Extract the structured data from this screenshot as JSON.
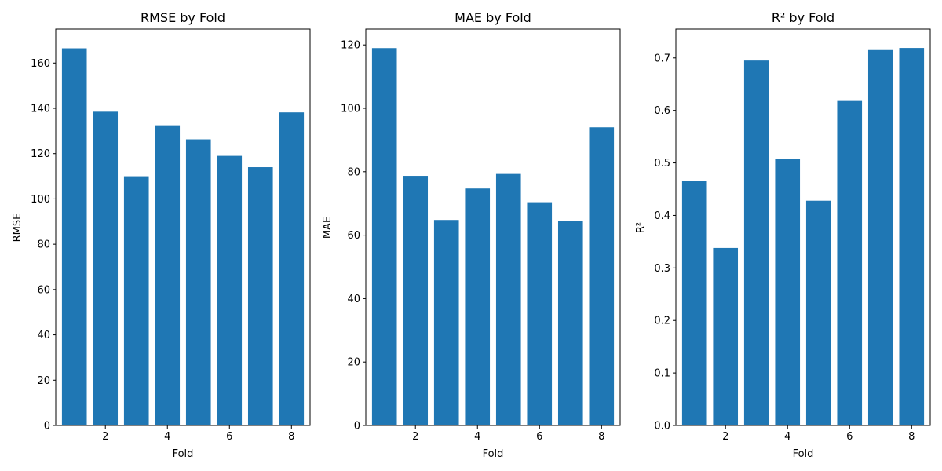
{
  "chart_data": [
    {
      "type": "bar",
      "title": "RMSE by Fold",
      "xlabel": "Fold",
      "ylabel": "RMSE",
      "x": [
        1,
        2,
        3,
        4,
        5,
        6,
        7,
        8
      ],
      "values": [
        166.5,
        138.5,
        110.0,
        132.5,
        126.3,
        119.0,
        114.0,
        138.2
      ],
      "xlim": [
        0.4,
        8.6
      ],
      "ylim": [
        0,
        175
      ],
      "xticks": [
        2,
        4,
        6,
        8
      ],
      "yticks": [
        0,
        20,
        40,
        60,
        80,
        100,
        120,
        140,
        160
      ],
      "ytick_labels": [
        "0",
        "20",
        "40",
        "60",
        "80",
        "100",
        "120",
        "140",
        "160"
      ],
      "color": "#1f77b4",
      "grid": false
    },
    {
      "type": "bar",
      "title": "MAE by Fold",
      "xlabel": "Fold",
      "ylabel": "MAE",
      "x": [
        1,
        2,
        3,
        4,
        5,
        6,
        7,
        8
      ],
      "values": [
        119.0,
        78.7,
        64.8,
        74.7,
        79.3,
        70.4,
        64.5,
        94.0
      ],
      "xlim": [
        0.4,
        8.6
      ],
      "ylim": [
        0,
        125
      ],
      "xticks": [
        2,
        4,
        6,
        8
      ],
      "yticks": [
        0,
        20,
        40,
        60,
        80,
        100,
        120
      ],
      "ytick_labels": [
        "0",
        "20",
        "40",
        "60",
        "80",
        "100",
        "120"
      ],
      "color": "#1f77b4",
      "grid": false
    },
    {
      "type": "bar",
      "title": "R² by Fold",
      "xlabel": "Fold",
      "ylabel": "R²",
      "x": [
        1,
        2,
        3,
        4,
        5,
        6,
        7,
        8
      ],
      "values": [
        0.466,
        0.338,
        0.695,
        0.507,
        0.428,
        0.618,
        0.715,
        0.719
      ],
      "xlim": [
        0.4,
        8.6
      ],
      "ylim": [
        0,
        0.755
      ],
      "xticks": [
        2,
        4,
        6,
        8
      ],
      "yticks": [
        0.0,
        0.1,
        0.2,
        0.3,
        0.4,
        0.5,
        0.6,
        0.7
      ],
      "ytick_labels": [
        "0.0",
        "0.1",
        "0.2",
        "0.3",
        "0.4",
        "0.5",
        "0.6",
        "0.7"
      ],
      "color": "#1f77b4",
      "grid": false
    }
  ]
}
